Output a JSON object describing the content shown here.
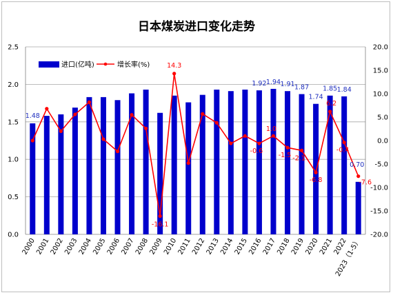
{
  "chart_data": {
    "type": "bar",
    "title": "日本煤炭进口变化走势",
    "categories": [
      "2000",
      "2001",
      "2002",
      "2003",
      "2004",
      "2005",
      "2006",
      "2007",
      "2008",
      "2009",
      "2010",
      "2011",
      "2012",
      "2013",
      "2014",
      "2015",
      "2016",
      "2017",
      "2018",
      "2019",
      "2020",
      "2021",
      "2022",
      "2023（1-5）"
    ],
    "series": [
      {
        "name": "进口(亿吨)",
        "type": "bar",
        "axis": "left",
        "color": "#0000cc",
        "values": [
          1.48,
          1.58,
          1.6,
          1.69,
          1.83,
          1.83,
          1.79,
          1.88,
          1.93,
          1.62,
          1.85,
          1.76,
          1.86,
          1.93,
          1.91,
          1.93,
          1.92,
          1.94,
          1.91,
          1.87,
          1.74,
          1.85,
          1.84,
          0.7
        ]
      },
      {
        "name": "增长率(%)",
        "type": "line",
        "axis": "right",
        "color": "#ff0000",
        "values": [
          0.0,
          6.8,
          2.0,
          5.6,
          8.2,
          0.3,
          -2.3,
          5.5,
          2.6,
          -16.1,
          14.3,
          -4.8,
          5.7,
          3.8,
          -0.6,
          1.0,
          -0.6,
          1.0,
          -1.5,
          -2.1,
          -6.8,
          6.2,
          -0.4,
          -7.6
        ]
      }
    ],
    "bar_data_labels": [
      {
        "index": 0,
        "text": "1.48"
      },
      {
        "index": 16,
        "text": "1.92"
      },
      {
        "index": 17,
        "text": "1.94"
      },
      {
        "index": 18,
        "text": "1.91"
      },
      {
        "index": 19,
        "text": "1.87"
      },
      {
        "index": 20,
        "text": "1.74"
      },
      {
        "index": 21,
        "text": "1.85"
      },
      {
        "index": 22,
        "text": "1.84"
      },
      {
        "index": 23,
        "text": "0.70"
      }
    ],
    "line_data_labels": [
      {
        "index": 9,
        "text": "-16.1"
      },
      {
        "index": 10,
        "text": "14.3"
      },
      {
        "index": 16,
        "text": "-0.6"
      },
      {
        "index": 17,
        "text": "1.0"
      },
      {
        "index": 18,
        "text": "-1.5"
      },
      {
        "index": 19,
        "text": "-2.1"
      },
      {
        "index": 20,
        "text": "-6.8"
      },
      {
        "index": 21,
        "text": "6.2"
      },
      {
        "index": 22,
        "text": "-0.4"
      },
      {
        "index": 23,
        "text": "-7.6"
      }
    ],
    "ylim_left": [
      0,
      2.5
    ],
    "yticks_left": [
      "0.0",
      "0.5",
      "1.0",
      "1.5",
      "2.0",
      "2.5"
    ],
    "ylim_right": [
      -20,
      20
    ],
    "yticks_right": [
      "-20.0",
      "-15.0",
      "-10.0",
      "-5.0",
      "0.0",
      "5.0",
      "10.0",
      "15.0",
      "20.0"
    ],
    "grid": true,
    "legend_position": "top-left"
  }
}
